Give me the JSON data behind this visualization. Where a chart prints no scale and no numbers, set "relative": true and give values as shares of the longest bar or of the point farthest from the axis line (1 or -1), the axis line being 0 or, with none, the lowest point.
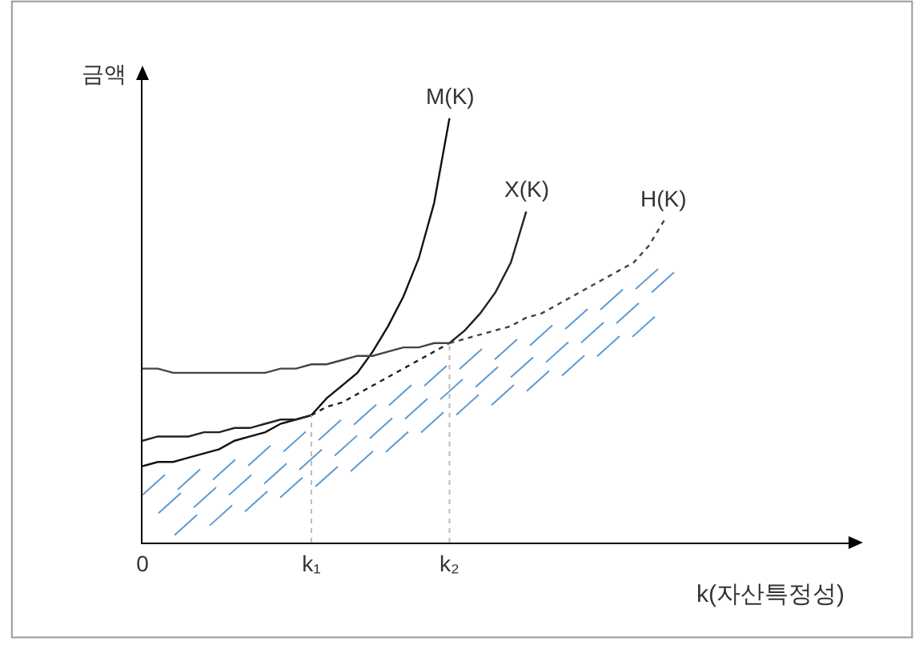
{
  "chart_data": {
    "type": "line",
    "relative": true,
    "xlabel": "k(자산특정성)",
    "ylabel": "금액",
    "categories": [
      "0",
      null,
      null,
      null,
      null,
      null,
      null,
      null,
      null,
      null,
      null,
      "k₁",
      null,
      null,
      null,
      null,
      null,
      null,
      null,
      null,
      "k₂",
      null,
      null,
      null,
      null,
      null,
      null,
      null,
      null,
      null,
      null,
      null,
      null,
      null,
      null,
      null,
      null,
      null,
      null,
      null,
      null,
      null,
      null,
      null,
      null,
      null,
      null
    ],
    "legend": false,
    "marker": "none",
    "series": [
      {
        "name": "M(K)",
        "color": "#111111",
        "line_style": "solid",
        "values": [
          0.18,
          0.19,
          0.19,
          0.2,
          0.21,
          0.22,
          0.24,
          0.25,
          0.26,
          0.28,
          0.29,
          0.3,
          0.34,
          0.37,
          0.4,
          0.45,
          0.51,
          0.58,
          0.67,
          0.8,
          1,
          null,
          null,
          null,
          null,
          null,
          null,
          null,
          null,
          null,
          null,
          null,
          null,
          null,
          null,
          null,
          null,
          null,
          null,
          null,
          null,
          null,
          null,
          null,
          null,
          null,
          null
        ]
      },
      {
        "color": "#222222",
        "line_style": "solid",
        "values": [
          0.24,
          0.25,
          0.25,
          0.25,
          0.26,
          0.26,
          0.27,
          0.27,
          0.28,
          0.29,
          0.29,
          0.3,
          null,
          null,
          null,
          null,
          null,
          null,
          null,
          null,
          null,
          null,
          null,
          null,
          null,
          null,
          null,
          null,
          null,
          null,
          null,
          null,
          null,
          null,
          null,
          null,
          null,
          null,
          null,
          null,
          null,
          null,
          null,
          null,
          null,
          null,
          null
        ]
      },
      {
        "color": "#222222",
        "line_style": "dotted",
        "values": [
          null,
          null,
          null,
          null,
          null,
          null,
          null,
          null,
          null,
          null,
          null,
          0.3,
          0.32,
          0.33,
          0.35,
          0.37,
          0.39,
          0.41,
          0.43,
          0.45,
          0.47,
          null,
          null,
          null,
          null,
          null,
          null,
          null,
          null,
          null,
          null,
          null,
          null,
          null,
          null,
          null,
          null,
          null,
          null,
          null,
          null,
          null,
          null,
          null,
          null,
          null,
          null
        ]
      },
      {
        "name": "X(K)",
        "color": "#222222",
        "line_style": "solid",
        "values": [
          null,
          null,
          null,
          null,
          null,
          null,
          null,
          null,
          null,
          null,
          null,
          null,
          null,
          null,
          null,
          null,
          null,
          null,
          null,
          null,
          0.47,
          0.5,
          0.54,
          0.59,
          0.66,
          0.78,
          null,
          null,
          null,
          null,
          null,
          null,
          null,
          null,
          null,
          null,
          null,
          null,
          null,
          null,
          null,
          null,
          null,
          null,
          null,
          null,
          null
        ]
      },
      {
        "color": "#444444",
        "line_style": "solid",
        "values": [
          0.41,
          0.41,
          0.4,
          0.4,
          0.4,
          0.4,
          0.4,
          0.4,
          0.4,
          0.41,
          0.41,
          0.42,
          0.42,
          0.43,
          0.44,
          0.44,
          0.45,
          0.46,
          0.46,
          0.47,
          0.47,
          null,
          null,
          null,
          null,
          null,
          null,
          null,
          null,
          null,
          null,
          null,
          null,
          null,
          null,
          null,
          null,
          null,
          null,
          null,
          null,
          null,
          null,
          null,
          null,
          null,
          null
        ]
      },
      {
        "name": "H(K)",
        "color": "#444444",
        "line_style": "dotted",
        "values": [
          null,
          null,
          null,
          null,
          null,
          null,
          null,
          null,
          null,
          null,
          null,
          null,
          null,
          null,
          null,
          null,
          null,
          null,
          null,
          null,
          0.47,
          0.48,
          0.49,
          0.5,
          0.51,
          0.53,
          0.54,
          0.56,
          0.58,
          0.6,
          0.62,
          0.64,
          0.66,
          0.7,
          0.76,
          null,
          null,
          null,
          null,
          null,
          null,
          null,
          null,
          null,
          null,
          null,
          null
        ]
      }
    ],
    "ref_lines": [
      {
        "axis": "x",
        "value": "k₁",
        "color": "#bbbbbb",
        "line_style": "dotted"
      },
      {
        "axis": "x",
        "value": "k₂",
        "color": "#bbbbbb",
        "line_style": "dotted"
      }
    ]
  }
}
